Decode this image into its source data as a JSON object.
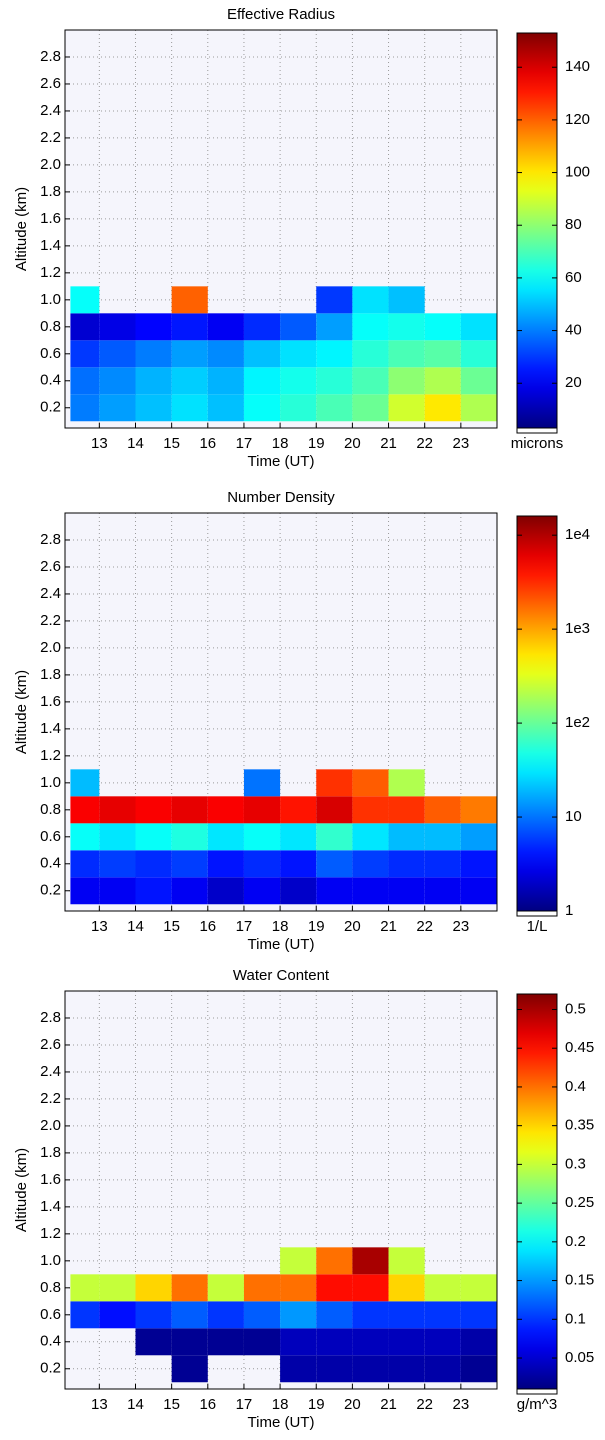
{
  "chart_data": [
    {
      "type": "heatmap",
      "title": "Effective Radius",
      "xlabel": "Time (UT)",
      "ylabel": "Altitude (km)",
      "colorbar_label": "microns",
      "x_bins": [
        12.2,
        13,
        14,
        15,
        16,
        17,
        18,
        19,
        20,
        21,
        22,
        23,
        24
      ],
      "y_bins": [
        0.1,
        0.3,
        0.5,
        0.7,
        0.9,
        1.1
      ],
      "z": [
        [
          40,
          45,
          50,
          55,
          50,
          60,
          65,
          70,
          75,
          90,
          100,
          85
        ],
        [
          38,
          42,
          48,
          52,
          48,
          58,
          62,
          65,
          70,
          80,
          85,
          75
        ],
        [
          30,
          35,
          40,
          45,
          42,
          50,
          55,
          58,
          65,
          70,
          72,
          65
        ],
        [
          15,
          18,
          22,
          25,
          20,
          28,
          35,
          45,
          60,
          62,
          60,
          55
        ],
        [
          60,
          null,
          null,
          120,
          null,
          null,
          null,
          30,
          55,
          50,
          null,
          null
        ]
      ],
      "xlim": [
        12.05,
        24
      ],
      "ylim": [
        0.05,
        3.0
      ],
      "xticks": [
        13,
        14,
        15,
        16,
        17,
        18,
        19,
        20,
        21,
        22,
        23
      ],
      "yticks": [
        0.2,
        0.4,
        0.6,
        0.8,
        {
          "value": 1.0,
          "label": "1.0"
        },
        1.2,
        1.4,
        1.6,
        1.8,
        {
          "value": 2.0,
          "label": "2.0"
        },
        2.2,
        2.4,
        2.6,
        2.8
      ],
      "clim": [
        3,
        153
      ],
      "cticks": [
        20,
        40,
        60,
        80,
        100,
        120,
        140
      ],
      "log": false,
      "grid": true
    },
    {
      "type": "heatmap",
      "title": "Number Density",
      "xlabel": "Time (UT)",
      "ylabel": "Altitude (km)",
      "colorbar_label": "1/L",
      "x_bins": [
        12.2,
        13,
        14,
        15,
        16,
        17,
        18,
        19,
        20,
        21,
        22,
        23,
        24
      ],
      "y_bins": [
        0.1,
        0.3,
        0.5,
        0.7,
        0.9,
        1.1
      ],
      "z": [
        [
          3,
          3,
          4,
          3,
          2,
          3,
          2,
          3,
          3,
          3,
          3,
          3
        ],
        [
          5,
          6,
          5,
          6,
          4,
          5,
          4,
          8,
          6,
          5,
          5,
          4
        ],
        [
          40,
          30,
          40,
          50,
          30,
          40,
          30,
          60,
          30,
          20,
          20,
          15
        ],
        [
          5000,
          6000,
          5000,
          6000,
          5000,
          6000,
          4000,
          7000,
          3000,
          3000,
          2000,
          1500
        ],
        [
          20,
          null,
          null,
          null,
          null,
          10,
          null,
          3000,
          2000,
          200,
          null,
          null
        ]
      ],
      "xlim": [
        12.05,
        24
      ],
      "ylim": [
        0.05,
        3.0
      ],
      "xticks": [
        13,
        14,
        15,
        16,
        17,
        18,
        19,
        20,
        21,
        22,
        23
      ],
      "yticks": [
        0.2,
        0.4,
        0.6,
        0.8,
        {
          "value": 1.0,
          "label": "1.0"
        },
        1.2,
        1.4,
        1.6,
        1.8,
        {
          "value": 2.0,
          "label": "2.0"
        },
        2.2,
        2.4,
        2.6,
        2.8
      ],
      "clim": [
        1,
        16000
      ],
      "cticks": [
        1,
        10,
        {
          "value": 100,
          "label": "1e2"
        },
        {
          "value": 1000,
          "label": "1e3"
        },
        {
          "value": 10000,
          "label": "1e4"
        }
      ],
      "log": true,
      "grid": true
    },
    {
      "type": "heatmap",
      "title": "Water Content",
      "xlabel": "Time (UT)",
      "ylabel": "Altitude (km)",
      "colorbar_label": "g/m^3",
      "x_bins": [
        12.2,
        13,
        14,
        15,
        16,
        17,
        18,
        19,
        20,
        21,
        22,
        23,
        24
      ],
      "y_bins": [
        0.1,
        0.3,
        0.5,
        0.7,
        0.9,
        1.1
      ],
      "z": [
        [
          null,
          null,
          null,
          0.02,
          null,
          null,
          0.03,
          0.03,
          0.03,
          0.03,
          0.03,
          0.02
        ],
        [
          null,
          null,
          0.02,
          0.02,
          0.02,
          0.02,
          0.04,
          0.04,
          0.04,
          0.04,
          0.04,
          0.03
        ],
        [
          0.1,
          0.08,
          0.1,
          0.12,
          0.1,
          0.12,
          0.15,
          0.12,
          0.1,
          0.1,
          0.1,
          0.1
        ],
        [
          0.3,
          0.3,
          0.35,
          0.4,
          0.3,
          0.4,
          0.4,
          0.45,
          0.45,
          0.35,
          0.3,
          0.3
        ],
        [
          null,
          null,
          null,
          null,
          null,
          null,
          0.3,
          0.4,
          0.5,
          0.3,
          null,
          null
        ]
      ],
      "xlim": [
        12.05,
        24
      ],
      "ylim": [
        0.05,
        3.0
      ],
      "xticks": [
        13,
        14,
        15,
        16,
        17,
        18,
        19,
        20,
        21,
        22,
        23
      ],
      "yticks": [
        0.2,
        0.4,
        0.6,
        0.8,
        {
          "value": 1.0,
          "label": "1.0"
        },
        1.2,
        1.4,
        1.6,
        1.8,
        {
          "value": 2.0,
          "label": "2.0"
        },
        2.2,
        2.4,
        2.6,
        2.8
      ],
      "clim": [
        0.01,
        0.52
      ],
      "cticks": [
        0.05,
        0.1,
        0.15,
        0.2,
        0.25,
        0.3,
        0.35,
        0.4,
        0.45,
        0.5
      ],
      "log": false,
      "grid": true
    }
  ]
}
